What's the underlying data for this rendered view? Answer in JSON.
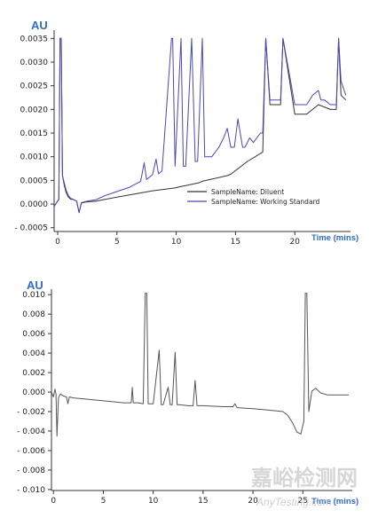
{
  "chart_data": [
    {
      "type": "line",
      "title": "",
      "ylabel": "AU",
      "xlabel": "Time (mins)",
      "xlim": [
        -0.3,
        24.4
      ],
      "ylim": [
        -0.00058,
        0.0036
      ],
      "xticks": [
        0,
        5,
        10,
        15,
        20
      ],
      "yticks": [
        -0.0005,
        0.0,
        0.0005,
        0.001,
        0.0015,
        0.002,
        0.0025,
        0.003,
        0.0035
      ],
      "ytick_labels": [
        "- 0.0005",
        "0.0000",
        "0.0005",
        "0.0010",
        "0.0015",
        "0.0020",
        "0.0025",
        "0.0030",
        "0.0035"
      ],
      "legend_position": "lower-right",
      "series": [
        {
          "name": "SampleName: Diluent",
          "color": "#333333",
          "x": [
            -0.3,
            0.1,
            0.2,
            0.3,
            0.4,
            0.55,
            0.7,
            0.9,
            1.1,
            1.3,
            1.6,
            1.8,
            2.0,
            2.3,
            2.7,
            3.2,
            4.0,
            6.0,
            8.0,
            9.9,
            10.2,
            11.9,
            12.2,
            14.3,
            14.6,
            16.0,
            17.3,
            17.55,
            17.9,
            18.8,
            19.0,
            20.0,
            21.0,
            22.0,
            23.0,
            23.5,
            23.7,
            23.9,
            24.3
          ],
          "y": [
            -5e-05,
            0.0001,
            0.0035,
            0.0035,
            0.0006,
            0.0004,
            0.00025,
            0.00015,
            0.0001,
            0.0001,
            6e-05,
            -0.00018,
            2e-05,
            4e-05,
            5e-05,
            6e-05,
            0.0001,
            0.00019,
            0.00028,
            0.00034,
            0.00036,
            0.00045,
            0.00048,
            0.0006,
            0.00063,
            0.0009,
            0.0011,
            0.0035,
            0.0021,
            0.0021,
            0.0035,
            0.0019,
            0.0019,
            0.0021,
            0.002,
            0.002,
            0.0035,
            0.0023,
            0.0022
          ]
        },
        {
          "name": "SampleName: Working Standard",
          "color": "#4848b8",
          "x": [
            -0.3,
            0.1,
            0.2,
            0.3,
            0.4,
            0.55,
            0.7,
            0.9,
            1.1,
            1.3,
            1.6,
            1.8,
            2.0,
            2.3,
            2.7,
            3.2,
            4.0,
            6.0,
            7.0,
            7.3,
            7.5,
            8.0,
            8.3,
            8.5,
            8.8,
            9.6,
            9.7,
            9.9,
            10.4,
            10.6,
            10.8,
            11.3,
            11.6,
            11.8,
            12.2,
            12.4,
            12.6,
            13.0,
            13.6,
            14.0,
            14.3,
            14.6,
            14.9,
            15.2,
            15.6,
            15.8,
            16.2,
            16.5,
            17.1,
            17.3,
            17.55,
            17.9,
            18.8,
            19.0,
            20.0,
            21.0,
            21.5,
            22.0,
            22.2,
            22.5,
            23.0,
            23.5,
            23.7,
            23.9,
            24.3
          ],
          "y": [
            -5e-05,
            0.0001,
            0.0035,
            0.0035,
            0.0006,
            0.00045,
            0.0003,
            0.00018,
            0.00012,
            0.0001,
            6e-05,
            -0.00018,
            3e-05,
            5e-05,
            7e-05,
            9e-05,
            0.00018,
            0.00035,
            0.00048,
            0.00087,
            0.00052,
            0.00062,
            0.00095,
            0.00064,
            0.0007,
            0.0035,
            0.0035,
            0.0008,
            0.0035,
            0.0008,
            0.0008,
            0.0035,
            0.0009,
            0.0009,
            0.0035,
            0.001,
            0.001,
            0.001,
            0.0012,
            0.0014,
            0.0016,
            0.0012,
            0.0012,
            0.0018,
            0.0012,
            0.0012,
            0.0014,
            0.0013,
            0.0015,
            0.0015,
            0.0035,
            0.0022,
            0.0022,
            0.0035,
            0.0021,
            0.0021,
            0.0023,
            0.0024,
            0.0022,
            0.0022,
            0.0021,
            0.0021,
            0.0035,
            0.0026,
            0.0023
          ]
        }
      ]
    },
    {
      "type": "line",
      "title": "",
      "ylabel": "AU",
      "xlabel": "Time (mins)",
      "xlim": [
        -0.2,
        29.6
      ],
      "ylim": [
        -0.0101,
        0.0102
      ],
      "xticks": [
        0,
        5,
        10,
        15,
        20,
        25
      ],
      "yticks": [
        -0.01,
        -0.008,
        -0.006,
        -0.004,
        -0.002,
        0.0,
        0.002,
        0.004,
        0.006,
        0.008,
        0.01
      ],
      "ytick_labels": [
        "- 0.010",
        "- 0.008",
        "- 0.006",
        "- 0.004",
        "- 0.002",
        "0.000",
        "0.002",
        "0.004",
        "0.006",
        "0.008",
        "0.010"
      ],
      "series": [
        {
          "color": "#555555",
          "x": [
            -0.2,
            0.0,
            0.15,
            0.25,
            0.35,
            0.5,
            0.7,
            1.0,
            1.3,
            1.45,
            1.6,
            2.0,
            4.0,
            7.0,
            7.8,
            7.9,
            8.0,
            8.5,
            9.0,
            9.2,
            9.35,
            9.5,
            9.7,
            10.0,
            10.6,
            10.8,
            11.0,
            11.5,
            11.7,
            11.9,
            12.2,
            12.4,
            12.6,
            13.5,
            14.0,
            14.2,
            14.4,
            15.0,
            17.0,
            18.0,
            18.2,
            18.4,
            20.0,
            21.0,
            22.0,
            23.0,
            23.5,
            24.0,
            24.4,
            24.8,
            25.1,
            25.25,
            25.4,
            25.6,
            25.9,
            26.3,
            26.8,
            27.5,
            28.5,
            29.6
          ],
          "y": [
            0.0,
            -0.0005,
            0.0003,
            -0.0002,
            -0.0045,
            -0.0006,
            -0.0002,
            -0.0004,
            -0.0005,
            -0.0012,
            -0.0005,
            -0.0006,
            -0.0008,
            -0.0011,
            -0.0011,
            0.0005,
            -0.0011,
            -0.0011,
            -0.0012,
            0.0102,
            0.0102,
            -0.0012,
            -0.0012,
            -0.0012,
            0.0043,
            -0.0013,
            -0.0013,
            0.0005,
            -0.0013,
            -0.0013,
            0.0041,
            -0.0013,
            -0.0013,
            -0.0014,
            -0.0014,
            0.0012,
            -0.0014,
            -0.0014,
            -0.0015,
            -0.0015,
            -0.0012,
            -0.0016,
            -0.0017,
            -0.0018,
            -0.0019,
            -0.002,
            -0.0024,
            -0.0032,
            -0.0041,
            -0.0043,
            -0.003,
            0.0102,
            0.0102,
            -0.002,
            0.0001,
            0.0004,
            -0.0001,
            -0.0003,
            -0.0003,
            -0.0003
          ]
        }
      ]
    }
  ],
  "watermark": {
    "brand_cn": "嘉峪检测网",
    "brand_en": "AnyTesting.com"
  }
}
